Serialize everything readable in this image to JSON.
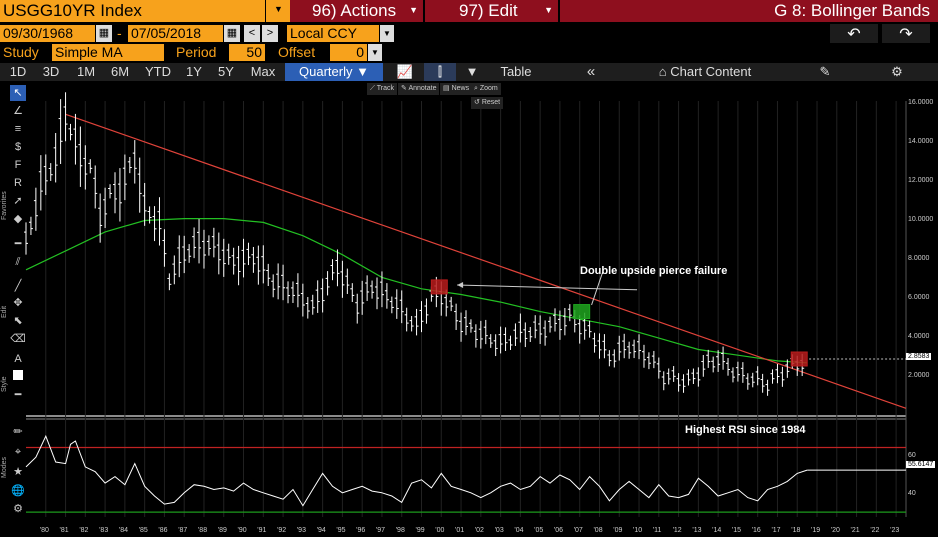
{
  "header": {
    "ticker": "USGG10YR Index",
    "actions": "96) Actions",
    "edit": "97) Edit",
    "title": "G 8: Bollinger Bands"
  },
  "date_range": {
    "start": "09/30/1968",
    "sep": "-",
    "end": "07/05/2018",
    "currency": "Local CCY"
  },
  "study": {
    "study_label": "Study",
    "study_value": "Simple MA",
    "period_label": "Period",
    "period_value": "50",
    "offset_label": "Offset",
    "offset_value": "0"
  },
  "toolbar": {
    "ranges": [
      "1D",
      "3D",
      "1M",
      "6M",
      "YTD",
      "1Y",
      "5Y",
      "Max"
    ],
    "frequency": "Quarterly ▼",
    "table": "Table",
    "collapse": "«",
    "chart_content": "Chart Content"
  },
  "mini_buttons": {
    "track": "Track",
    "annotate": "Annotate",
    "news": "News",
    "zoom": "Zoom",
    "reset": "Reset"
  },
  "side_labels": {
    "favorites": "Favorites",
    "edit": "Edit",
    "style": "Style",
    "modes": "Modes"
  },
  "colors": {
    "orange": "#f7a21c",
    "header_red": "#8e0f1e",
    "price": "#ffffff",
    "ma": "#23c023",
    "trendline": "#e0433a",
    "rsi_high": "#c02222",
    "rsi_low": "#1c9a1c"
  },
  "chart_data": [
    {
      "type": "bar",
      "style": "quarterly OHLC",
      "x_axis": [
        "'80",
        "'81",
        "'82",
        "'83",
        "'84",
        "'85",
        "'86",
        "'87",
        "'88",
        "'89",
        "'90",
        "'91",
        "'92",
        "'93",
        "'94",
        "'95",
        "'96",
        "'97",
        "'98",
        "'99",
        "'00",
        "'01",
        "'02",
        "'03",
        "'04",
        "'05",
        "'06",
        "'07",
        "'08",
        "'09",
        "'10",
        "'11",
        "'12",
        "'13",
        "'14",
        "'15",
        "'16",
        "'17",
        "'18",
        "'19",
        "'20",
        "'21",
        "'22",
        "'23"
      ],
      "y_ticks": [
        "16.0000",
        "14.0000",
        "12.0000",
        "10.0000",
        "8.0000",
        "6.0000",
        "4.0000",
        "2.0000"
      ],
      "ylim": [
        0,
        16.5
      ],
      "last_value": "2.8583",
      "series": [
        {
          "name": "Price",
          "x": [
            1979.0,
            1979.75,
            1980.5,
            1981.0,
            1981.75,
            1982.25,
            1982.75,
            1983.25,
            1983.75,
            1984.5,
            1985.0,
            1985.75,
            1986.25,
            1987.0,
            1987.75,
            1988.5,
            1989.5,
            1990.5,
            1991.5,
            1992.5,
            1993.5,
            1994.75,
            1995.75,
            1996.5,
            1997.5,
            1998.75,
            1999.5,
            2000.0,
            2001.0,
            2002.0,
            2003.0,
            2004.0,
            2005.0,
            2006.5,
            2007.5,
            2008.5,
            2009.5,
            2010.5,
            2011.25,
            2012.5,
            2013.5,
            2014.0,
            2015.0,
            2016.5,
            2017.5,
            2018.5
          ],
          "values": [
            9.0,
            12.0,
            13.5,
            15.8,
            13.5,
            13.0,
            10.5,
            11.5,
            11.8,
            13.5,
            10.8,
            10.0,
            7.2,
            8.5,
            9.0,
            8.8,
            8.0,
            8.3,
            7.0,
            6.5,
            5.6,
            7.8,
            5.8,
            6.7,
            6.0,
            4.6,
            6.2,
            6.3,
            4.8,
            4.2,
            3.7,
            4.3,
            4.4,
            5.1,
            4.3,
            3.0,
            3.6,
            3.0,
            2.0,
            1.7,
            2.7,
            2.9,
            2.1,
            1.6,
            2.4,
            2.9
          ]
        },
        {
          "name": "MA 50",
          "x": [
            1979.0,
            1981.0,
            1983.0,
            1985.0,
            1987.0,
            1989.0,
            1991.0,
            1993.0,
            1995.0,
            1997.0,
            1999.0,
            2001.0,
            2003.0,
            2005.0,
            2007.0,
            2009.0,
            2011.0,
            2013.0,
            2015.0,
            2017.0,
            2018.5
          ],
          "values": [
            7.6,
            8.6,
            9.6,
            10.2,
            10.3,
            10.3,
            10.1,
            9.4,
            8.4,
            7.2,
            6.6,
            6.3,
            5.9,
            5.4,
            5.0,
            4.6,
            4.0,
            3.4,
            3.1,
            2.8,
            2.7
          ]
        },
        {
          "name": "Trend line",
          "x": [
            1981.0,
            2023.5
          ],
          "values": [
            15.8,
            0.3
          ]
        }
      ]
    },
    {
      "type": "line",
      "style": "RSI",
      "y_ticks": [
        "60",
        "40"
      ],
      "ylim": [
        27,
        87
      ],
      "last_value": "55.6147",
      "series": [
        {
          "name": "RSI",
          "x": [
            1979.0,
            1979.5,
            1980.0,
            1980.5,
            1981.0,
            1981.25,
            1981.5,
            1982.0,
            1982.5,
            1983.0,
            1983.5,
            1984.0,
            1984.5,
            1985.0,
            1985.5,
            1986.0,
            1986.5,
            1987.0,
            1987.5,
            1988.0,
            1988.5,
            1989.0,
            1989.5,
            1990.0,
            1990.5,
            1991.0,
            1991.5,
            1992.0,
            1992.5,
            1993.0,
            1993.5,
            1994.0,
            1994.5,
            1995.0,
            1995.5,
            1996.0,
            1996.5,
            1997.0,
            1997.5,
            1998.0,
            1998.5,
            1999.0,
            1999.5,
            2000.0,
            2000.5,
            2001.0,
            2001.5,
            2002.0,
            2002.5,
            2003.0,
            2003.5,
            2004.0,
            2004.5,
            2005.0,
            2005.5,
            2006.0,
            2006.5,
            2007.0,
            2007.5,
            2008.0,
            2008.5,
            2009.0,
            2009.5,
            2010.0,
            2010.5,
            2011.0,
            2011.5,
            2012.0,
            2012.5,
            2013.0,
            2013.5,
            2014.0,
            2014.5,
            2015.0,
            2015.5,
            2016.0,
            2016.5,
            2017.0,
            2017.5,
            2018.0,
            2018.5
          ],
          "values": [
            58,
            64,
            77,
            61,
            60,
            72,
            74,
            58,
            55,
            48,
            52,
            47,
            60,
            46,
            40,
            35,
            36,
            42,
            47,
            46,
            44,
            45,
            43,
            48,
            44,
            42,
            40,
            38,
            44,
            34,
            44,
            54,
            46,
            42,
            44,
            46,
            43,
            42,
            40,
            36,
            48,
            50,
            45,
            54,
            46,
            44,
            42,
            39,
            42,
            46,
            48,
            44,
            46,
            52,
            48,
            53,
            50,
            44,
            52,
            46,
            37,
            44,
            49,
            44,
            39,
            47,
            40,
            39,
            41,
            51,
            46,
            40,
            42,
            44,
            39,
            37,
            44,
            46,
            49,
            54,
            56
          ]
        },
        {
          "name": "High",
          "x": [
            1979.0,
            2023.5
          ],
          "values": [
            70,
            70
          ]
        },
        {
          "name": "Low",
          "x": [
            1979.0,
            2023.5
          ],
          "values": [
            30,
            30
          ]
        }
      ]
    }
  ],
  "annotations": {
    "double_pierce": "Double upside pierce failure",
    "highest_rsi": "Highest RSI since 1984"
  }
}
